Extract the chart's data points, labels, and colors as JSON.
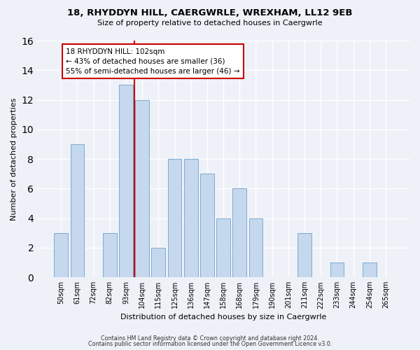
{
  "title": "18, RHYDDYN HILL, CAERGWRLE, WREXHAM, LL12 9EB",
  "subtitle": "Size of property relative to detached houses in Caergwrle",
  "xlabel": "Distribution of detached houses by size in Caergwrle",
  "ylabel": "Number of detached properties",
  "bar_labels": [
    "50sqm",
    "61sqm",
    "72sqm",
    "82sqm",
    "93sqm",
    "104sqm",
    "115sqm",
    "125sqm",
    "136sqm",
    "147sqm",
    "158sqm",
    "168sqm",
    "179sqm",
    "190sqm",
    "201sqm",
    "211sqm",
    "222sqm",
    "233sqm",
    "244sqm",
    "254sqm",
    "265sqm"
  ],
  "bar_values": [
    3,
    9,
    0,
    3,
    13,
    12,
    2,
    8,
    8,
    7,
    4,
    6,
    4,
    0,
    0,
    3,
    0,
    1,
    0,
    1,
    0
  ],
  "bar_color": "#c5d8ed",
  "bar_edge_color": "#7faacf",
  "vline_x_idx": 5,
  "vline_color": "#cc0000",
  "annotation_title": "18 RHYDDYN HILL: 102sqm",
  "annotation_line1": "← 43% of detached houses are smaller (36)",
  "annotation_line2": "55% of semi-detached houses are larger (46) →",
  "annotation_box_facecolor": "#ffffff",
  "annotation_box_edgecolor": "#cc0000",
  "ylim": [
    0,
    16
  ],
  "yticks": [
    0,
    2,
    4,
    6,
    8,
    10,
    12,
    14,
    16
  ],
  "footer1": "Contains HM Land Registry data © Crown copyright and database right 2024.",
  "footer2": "Contains public sector information licensed under the Open Government Licence v3.0.",
  "background_color": "#eef2f8",
  "grid_color": "#ffffff",
  "title_fontsize": 9.5,
  "subtitle_fontsize": 8,
  "axis_label_fontsize": 8,
  "tick_fontsize": 7
}
